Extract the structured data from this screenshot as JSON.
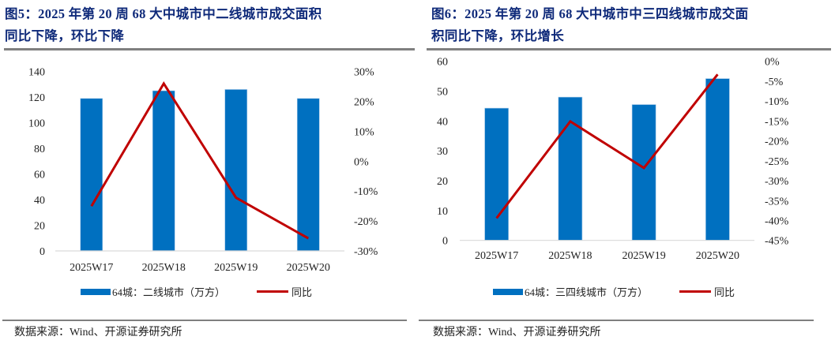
{
  "colors": {
    "bar": "#0070c0",
    "line": "#c00000",
    "title": "#0f2a7a",
    "rule": "#7f7f7f",
    "axis": "#d9d9d9"
  },
  "figures": [
    {
      "title_line1": "图5：2025 年第 20 周 68 大中城市中二线城市成交面积",
      "title_line2": "同比下降，环比下降",
      "legend_bar": "64城：二线城市（万方）",
      "legend_line": "同比",
      "source": "数据来源：Wind、开源证券研究所"
    },
    {
      "title_line1": "图6：2025 年第 20 周 68 大中城市中三四线城市成交面",
      "title_line2": "积同比下降，环比增长",
      "legend_bar": "64城：三四线城市（万方）",
      "legend_line": "同比",
      "source": "数据来源：Wind、开源证券研究所"
    }
  ],
  "chart_data": [
    {
      "type": "bar",
      "title": "图5：2025 年第 20 周 68 大中城市中二线城市成交面积同比下降，环比下降",
      "categories": [
        "2025W17",
        "2025W18",
        "2025W19",
        "2025W20"
      ],
      "series": [
        {
          "name": "64城：二线城市（万方）",
          "type": "bar",
          "axis": "left",
          "values": [
            119,
            125,
            126,
            119
          ]
        },
        {
          "name": "同比",
          "type": "line",
          "axis": "right",
          "values": [
            -15.0,
            26.0,
            -12.2,
            -25.8
          ]
        }
      ],
      "ylim": [
        0,
        140
      ],
      "yticks": [
        "0",
        "20",
        "40",
        "60",
        "80",
        "100",
        "120",
        "140"
      ],
      "ylim_right": [
        -30,
        30
      ],
      "yticks_right": [
        "-30%",
        "-20%",
        "-10%",
        "0%",
        "10%",
        "20%",
        "30%"
      ],
      "xlabel": "",
      "ylabel": "",
      "grid": false,
      "legend": "bottom"
    },
    {
      "type": "bar",
      "title": "图6：2025 年第 20 周 68 大中城市中三四线城市成交面积同比下降，环比增长",
      "categories": [
        "2025W17",
        "2025W18",
        "2025W19",
        "2025W20"
      ],
      "series": [
        {
          "name": "64城：三四线城市（万方）",
          "type": "bar",
          "axis": "left",
          "values": [
            44.3,
            48.0,
            45.5,
            54.2
          ]
        },
        {
          "name": "同比",
          "type": "line",
          "axis": "right",
          "values": [
            -39.4,
            -15.1,
            -26.8,
            -3.3
          ]
        }
      ],
      "ylim": [
        0,
        60
      ],
      "yticks": [
        "0",
        "10",
        "20",
        "30",
        "40",
        "50",
        "60"
      ],
      "ylim_right": [
        -45,
        0
      ],
      "yticks_right": [
        "-45%",
        "-40%",
        "-35%",
        "-30%",
        "-25%",
        "-20%",
        "-15%",
        "-10%",
        "-5%",
        "0%"
      ],
      "xlabel": "",
      "ylabel": "",
      "grid": false,
      "legend": "bottom"
    }
  ]
}
